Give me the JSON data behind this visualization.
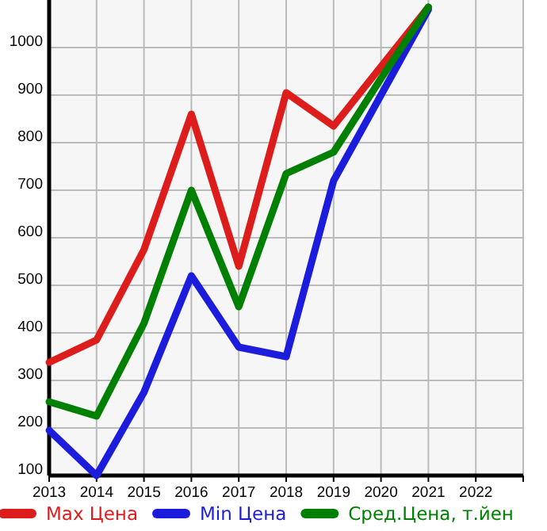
{
  "chart_data": {
    "type": "line",
    "x": [
      2013,
      2014,
      2015,
      2016,
      2017,
      2018,
      2019,
      2020,
      2021
    ],
    "series": [
      {
        "name": "Max Цена",
        "color": "#dd1c1c",
        "values": [
          338,
          385,
          575,
          860,
          540,
          905,
          835,
          960,
          1085
        ]
      },
      {
        "name": "Min Цена",
        "color": "#1c1cdc",
        "values": [
          195,
          100,
          275,
          520,
          370,
          350,
          720,
          900,
          1080
        ]
      },
      {
        "name": "Сред.Цена, т.йен",
        "color": "#008000",
        "values": [
          255,
          225,
          420,
          700,
          455,
          735,
          780,
          935,
          1085
        ]
      }
    ],
    "xlim": [
      2013,
      2023
    ],
    "xticks": [
      2013,
      2014,
      2015,
      2016,
      2017,
      2018,
      2019,
      2020,
      2021,
      2022,
      {
        "value": 2023,
        "label": null
      }
    ],
    "ylim": [
      100,
      1100
    ],
    "yticks": [
      100,
      200,
      300,
      400,
      500,
      600,
      700,
      800,
      900,
      1000
    ],
    "grid": true,
    "legend": "bottom",
    "marker": "none",
    "line_style": "solid"
  }
}
